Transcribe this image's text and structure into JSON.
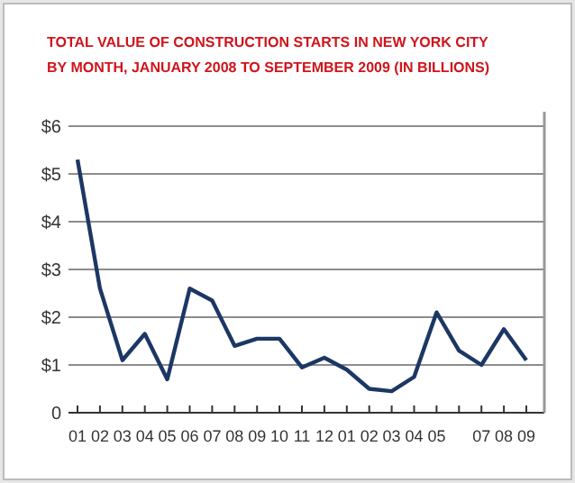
{
  "chart_data": {
    "type": "line",
    "title": "TOTAL VALUE OF CONSTRUCTION STARTS IN NEW YORK CITY\nBY MONTH, JANUARY 2008 TO SEPTEMBER 2009  (IN BILLIONS)",
    "categories": [
      "01",
      "02",
      "03",
      "04",
      "05",
      "06",
      "07",
      "08",
      "09",
      "10",
      "11",
      "12",
      "01",
      "02",
      "03",
      "04",
      "05",
      null,
      "07",
      "08",
      "09"
    ],
    "series": [
      {
        "color": "#1c3764",
        "values": [
          5.3,
          2.6,
          1.1,
          1.65,
          0.7,
          2.6,
          2.35,
          1.4,
          1.55,
          1.55,
          0.95,
          1.15,
          0.9,
          0.5,
          0.45,
          0.75,
          2.1,
          1.3,
          1.0,
          1.75,
          1.1
        ]
      }
    ],
    "ylim": [
      0,
      6
    ],
    "yticks": [
      {
        "value": 0,
        "label": "0"
      },
      {
        "value": 1,
        "label": "$1"
      },
      {
        "value": 2,
        "label": "$2"
      },
      {
        "value": 3,
        "label": "$3"
      },
      {
        "value": 4,
        "label": "$4"
      },
      {
        "value": 5,
        "label": "$5"
      },
      {
        "value": 6,
        "label": "$6"
      }
    ],
    "grid": "y",
    "marker": "none",
    "line_style": "solid"
  }
}
